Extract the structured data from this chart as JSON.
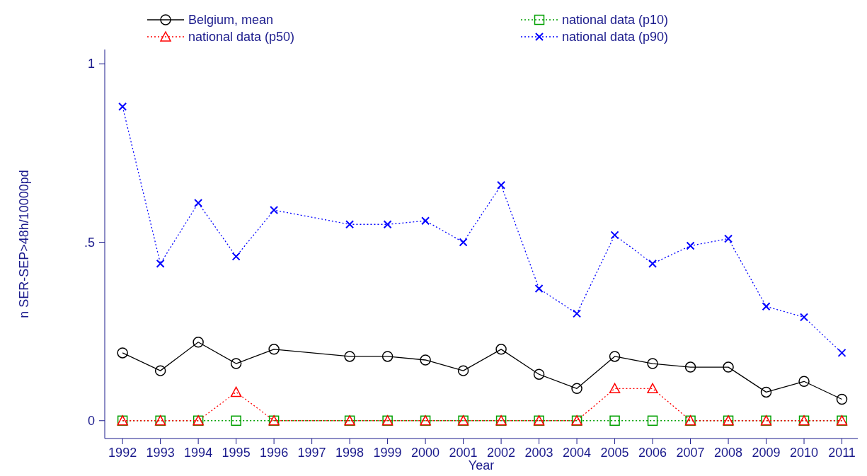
{
  "chart_data": {
    "type": "line",
    "xlabel": "Year",
    "ylabel": "n SER-SEP>48h/10000pd",
    "x": [
      1992,
      1993,
      1994,
      1995,
      1996,
      1998,
      1999,
      2000,
      2001,
      2002,
      2003,
      2004,
      2005,
      2006,
      2007,
      2008,
      2009,
      2010,
      2011
    ],
    "xlim": [
      1991.53,
      2011.42
    ],
    "xticks": [
      1992,
      1993,
      1994,
      1995,
      1996,
      1997,
      1998,
      1999,
      2000,
      2001,
      2002,
      2003,
      2004,
      2005,
      2006,
      2007,
      2008,
      2009,
      2010,
      2011
    ],
    "ylim": [
      -0.05,
      1.04
    ],
    "yticks": [
      0,
      {
        "value": 0.5,
        "label": ".5"
      },
      1
    ],
    "grid": false,
    "legend": "top",
    "series": [
      {
        "name": "Belgium, mean",
        "color": "#000000",
        "marker": "circle",
        "line_style": "solid",
        "values": [
          0.19,
          0.14,
          0.22,
          0.16,
          0.2,
          0.18,
          0.18,
          0.17,
          0.14,
          0.2,
          0.13,
          0.09,
          0.18,
          0.16,
          0.15,
          0.15,
          0.08,
          0.11,
          0.06
        ]
      },
      {
        "name": "national data (p10)",
        "color": "#00a000",
        "marker": "square",
        "line_style": "dotted",
        "values": [
          0,
          0,
          0,
          0,
          0,
          0,
          0,
          0,
          0,
          0,
          0,
          0,
          0,
          0,
          0,
          0,
          0,
          0,
          0
        ]
      },
      {
        "name": "national data (p50)",
        "color": "#ff0000",
        "marker": "triangle",
        "line_style": "dotted",
        "values": [
          0,
          0,
          0,
          0.08,
          0,
          0,
          0,
          0,
          0,
          0,
          0,
          0,
          0.09,
          0.09,
          0,
          0,
          0,
          0,
          0
        ]
      },
      {
        "name": "national data (p90)",
        "color": "#0000ff",
        "marker": "cross",
        "line_style": "dotted",
        "values": [
          0.88,
          0.44,
          0.61,
          0.46,
          0.59,
          0.55,
          0.55,
          0.56,
          0.5,
          0.66,
          0.37,
          0.3,
          0.52,
          0.44,
          0.49,
          0.51,
          0.32,
          0.29,
          0.19
        ]
      }
    ]
  }
}
